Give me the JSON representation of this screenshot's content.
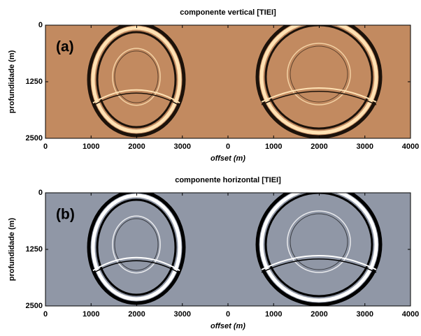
{
  "chart_data": [
    {
      "type": "image",
      "title": "componente vertical [TIEI]",
      "panel_label": "(a)",
      "xlabel": "offset (m)",
      "ylabel": "profundidade (m)",
      "color": "#c28a60",
      "ring_dark": "#1c120a",
      "ring_light": "#ffe2b4",
      "xlim": [
        0,
        8000
      ],
      "xticks": [
        0,
        1000,
        2000,
        3000,
        {
          "value": 4000,
          "label": "0"
        },
        {
          "value": 5000,
          "label": "1000"
        },
        {
          "value": 6000,
          "label": "2000"
        },
        {
          "value": 7000,
          "label": "3000"
        },
        {
          "value": 8000,
          "label": "4000"
        }
      ],
      "ylim": [
        0,
        2500
      ],
      "yticks": [
        0,
        1250,
        2500
      ],
      "y_inverted": true
    },
    {
      "type": "image",
      "title": "componente horizontal [TIEI]",
      "panel_label": "(b)",
      "xlabel": "offset (m)",
      "ylabel": "profundidade (m)",
      "color": "#9097a6",
      "ring_dark": "#000000",
      "ring_light": "#ffffff",
      "xlim": [
        0,
        8000
      ],
      "xticks": [
        0,
        1000,
        2000,
        3000,
        {
          "value": 4000,
          "label": "0"
        },
        {
          "value": 5000,
          "label": "1000"
        },
        {
          "value": 6000,
          "label": "2000"
        },
        {
          "value": 7000,
          "label": "3000"
        },
        {
          "value": 8000,
          "label": "4000"
        }
      ],
      "ylim": [
        0,
        2500
      ],
      "yticks": [
        0,
        1250,
        2500
      ],
      "y_inverted": true
    }
  ]
}
